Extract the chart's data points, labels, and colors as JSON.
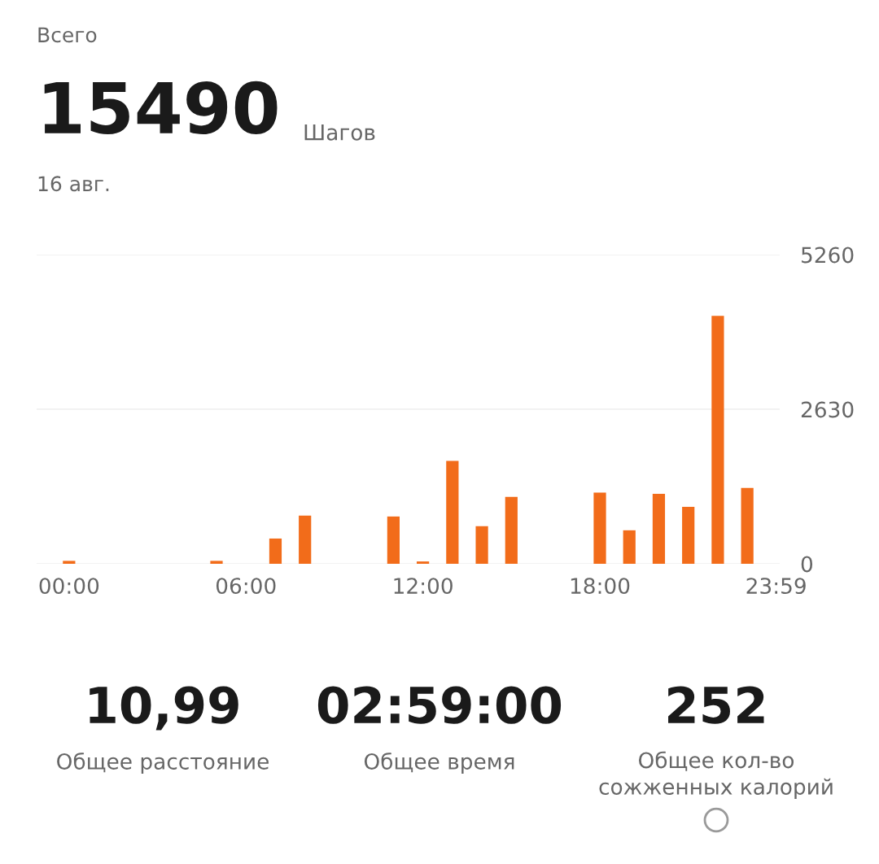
{
  "chart_data": {
    "type": "bar",
    "x": [
      0,
      1,
      2,
      3,
      4,
      5,
      6,
      7,
      8,
      9,
      10,
      11,
      12,
      13,
      14,
      15,
      16,
      17,
      18,
      19,
      20,
      21,
      22,
      23
    ],
    "values": [
      50,
      0,
      0,
      0,
      0,
      50,
      0,
      430,
      820,
      0,
      0,
      805,
      40,
      1750,
      640,
      1140,
      0,
      0,
      1210,
      570,
      1190,
      970,
      4220,
      1290
    ],
    "color": "#f26c1a",
    "xlim": [
      -1.1,
      24.1
    ],
    "xticks": [
      {
        "value": 0,
        "label": "00:00"
      },
      {
        "value": 6,
        "label": "06:00"
      },
      {
        "value": 12,
        "label": "12:00"
      },
      {
        "value": 18,
        "label": "18:00"
      },
      {
        "value": 23.98,
        "label": "23:59"
      }
    ],
    "ylim": [
      0,
      5260
    ],
    "yticks": [
      0,
      2630,
      5260
    ],
    "grid": "y",
    "annotations": [
      "Всего",
      "15490",
      "Шагов",
      "16 авг.",
      "10,99",
      "Общее расстояние",
      "02:59:00",
      "Общее время",
      "252",
      "Общее кол-во\nсожженных калорий"
    ]
  }
}
